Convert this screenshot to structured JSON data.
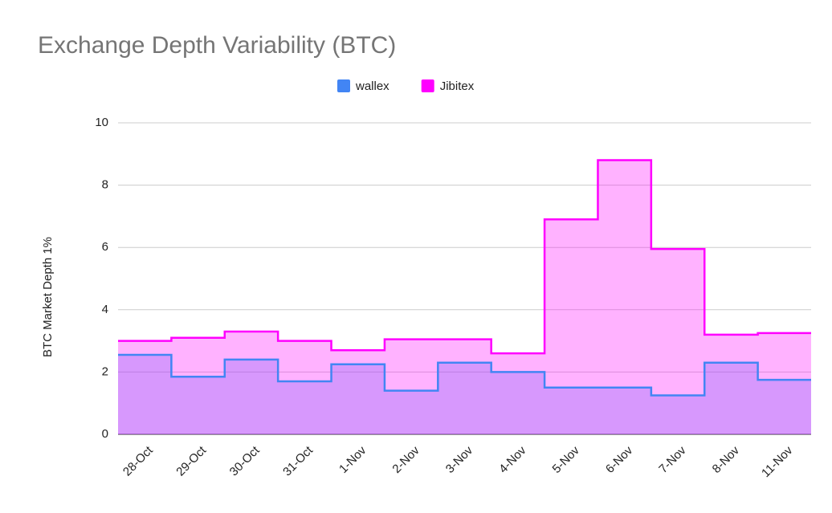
{
  "chart_data": {
    "type": "stepped-area",
    "title": "Exchange Depth Variability (BTC)",
    "ylabel": "BTC Market Depth 1%",
    "categories": [
      "28-Oct",
      "29-Oct",
      "30-Oct",
      "31-Oct",
      "1-Nov",
      "2-Nov",
      "3-Nov",
      "4-Nov",
      "5-Nov",
      "6-Nov",
      "7-Nov",
      "8-Nov",
      "11-Nov"
    ],
    "series": [
      {
        "name": "wallex",
        "color": "#4285f4",
        "values": [
          2.55,
          1.85,
          2.4,
          1.7,
          2.25,
          1.4,
          2.3,
          2.0,
          1.5,
          1.5,
          1.25,
          2.3,
          1.75
        ]
      },
      {
        "name": "Jibitex",
        "color": "#ff00ff",
        "values": [
          3.0,
          3.1,
          3.3,
          3.0,
          2.7,
          3.05,
          3.05,
          2.6,
          6.9,
          8.8,
          5.95,
          3.2,
          3.25
        ]
      }
    ],
    "ylim": [
      0,
      10
    ],
    "yticks": [
      0,
      2,
      4,
      6,
      8,
      10
    ],
    "grid": true,
    "legend": "top"
  }
}
